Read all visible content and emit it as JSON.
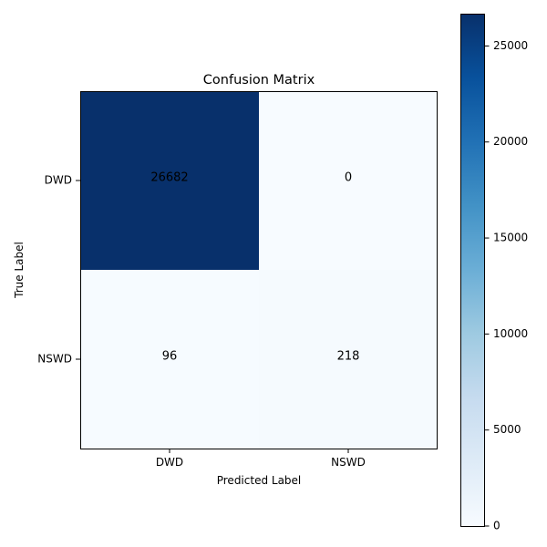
{
  "chart_data": {
    "type": "heatmap",
    "title": "Confusion Matrix",
    "xlabel": "Predicted Label",
    "ylabel": "True Label",
    "x_categories": [
      "DWD",
      "NSWD"
    ],
    "y_categories": [
      "DWD",
      "NSWD"
    ],
    "values": [
      [
        26682,
        0
      ],
      [
        96,
        218
      ]
    ],
    "cell_labels": [
      [
        "26682",
        "0"
      ],
      [
        "96",
        "218"
      ]
    ],
    "colormap": "Blues",
    "colorbar": {
      "min": 0,
      "max": 26682,
      "ticks": [
        0,
        5000,
        10000,
        15000,
        20000,
        25000
      ],
      "tick_labels": [
        "0",
        "5000",
        "10000",
        "15000",
        "20000",
        "25000"
      ]
    },
    "grid": false
  }
}
